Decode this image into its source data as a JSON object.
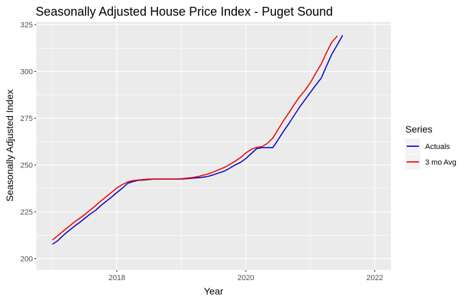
{
  "chart_data": {
    "type": "line",
    "title": "Seasonally Adjusted House Price Index - Puget Sound",
    "xlabel": "Year",
    "ylabel": "Seasonally Adjusted Index",
    "xlim": [
      2016.75,
      2022.25
    ],
    "ylim": [
      194,
      326.5
    ],
    "x_ticks": [
      2018,
      2020,
      2022
    ],
    "x_tick_labels": [
      "2018",
      "2020",
      "2022"
    ],
    "y_ticks": [
      200,
      225,
      250,
      275,
      300,
      325
    ],
    "y_tick_labels": [
      "200",
      "225",
      "250",
      "275",
      "300",
      "325"
    ],
    "grid": true,
    "legend": {
      "title": "Series",
      "position": "right"
    },
    "series": [
      {
        "name": "Actuals",
        "color": "#0000cc",
        "points": [
          [
            2017.0,
            207.7
          ],
          [
            2017.08,
            209.5
          ],
          [
            2017.17,
            212.5
          ],
          [
            2017.25,
            214.8
          ],
          [
            2017.33,
            217.0
          ],
          [
            2017.42,
            219.3
          ],
          [
            2017.5,
            221.5
          ],
          [
            2017.58,
            223.7
          ],
          [
            2017.67,
            225.8
          ],
          [
            2017.75,
            228.3
          ],
          [
            2017.83,
            230.5
          ],
          [
            2017.92,
            233.0
          ],
          [
            2018.0,
            235.3
          ],
          [
            2018.08,
            237.5
          ],
          [
            2018.17,
            240.3
          ],
          [
            2018.25,
            241.2
          ],
          [
            2018.33,
            241.8
          ],
          [
            2018.42,
            242.0
          ],
          [
            2018.5,
            242.3
          ],
          [
            2018.58,
            242.5
          ],
          [
            2018.67,
            242.5
          ],
          [
            2018.75,
            242.5
          ],
          [
            2018.83,
            242.5
          ],
          [
            2018.92,
            242.5
          ],
          [
            2019.0,
            242.5
          ],
          [
            2019.08,
            242.7
          ],
          [
            2019.17,
            243.0
          ],
          [
            2019.25,
            243.2
          ],
          [
            2019.33,
            243.5
          ],
          [
            2019.42,
            244.0
          ],
          [
            2019.5,
            244.8
          ],
          [
            2019.58,
            245.8
          ],
          [
            2019.67,
            246.8
          ],
          [
            2019.75,
            248.3
          ],
          [
            2019.83,
            250.0
          ],
          [
            2019.92,
            251.5
          ],
          [
            2020.0,
            253.5
          ],
          [
            2020.08,
            256.0
          ],
          [
            2020.17,
            258.8
          ],
          [
            2020.25,
            259.3
          ],
          [
            2020.33,
            259.3
          ],
          [
            2020.42,
            259.3
          ],
          [
            2020.5,
            263.5
          ],
          [
            2020.58,
            267.8
          ],
          [
            2020.67,
            272.3
          ],
          [
            2020.75,
            276.5
          ],
          [
            2020.83,
            280.8
          ],
          [
            2020.92,
            285.0
          ],
          [
            2021.0,
            288.8
          ],
          [
            2021.08,
            292.5
          ],
          [
            2021.17,
            296.5
          ],
          [
            2021.25,
            302.8
          ],
          [
            2021.33,
            309.0
          ],
          [
            2021.42,
            314.3
          ],
          [
            2021.5,
            319.3
          ]
        ]
      },
      {
        "name": "3 mo Avg",
        "color": "#ee0000",
        "points": [
          [
            2017.0,
            210.0
          ],
          [
            2017.08,
            212.2
          ],
          [
            2017.17,
            214.8
          ],
          [
            2017.25,
            217.0
          ],
          [
            2017.33,
            219.3
          ],
          [
            2017.42,
            221.5
          ],
          [
            2017.5,
            223.5
          ],
          [
            2017.58,
            225.8
          ],
          [
            2017.67,
            228.3
          ],
          [
            2017.75,
            230.8
          ],
          [
            2017.83,
            233.0
          ],
          [
            2017.92,
            235.5
          ],
          [
            2018.0,
            237.8
          ],
          [
            2018.08,
            239.5
          ],
          [
            2018.17,
            241.0
          ],
          [
            2018.25,
            241.7
          ],
          [
            2018.33,
            242.0
          ],
          [
            2018.42,
            242.3
          ],
          [
            2018.5,
            242.5
          ],
          [
            2018.58,
            242.5
          ],
          [
            2018.67,
            242.5
          ],
          [
            2018.75,
            242.5
          ],
          [
            2018.83,
            242.5
          ],
          [
            2018.92,
            242.5
          ],
          [
            2019.0,
            242.7
          ],
          [
            2019.08,
            243.0
          ],
          [
            2019.17,
            243.3
          ],
          [
            2019.25,
            243.8
          ],
          [
            2019.33,
            244.5
          ],
          [
            2019.42,
            245.3
          ],
          [
            2019.5,
            246.3
          ],
          [
            2019.58,
            247.5
          ],
          [
            2019.67,
            248.8
          ],
          [
            2019.75,
            250.3
          ],
          [
            2019.83,
            252.0
          ],
          [
            2019.92,
            254.0
          ],
          [
            2020.0,
            256.5
          ],
          [
            2020.08,
            258.3
          ],
          [
            2020.17,
            259.5
          ],
          [
            2020.25,
            259.8
          ],
          [
            2020.33,
            261.5
          ],
          [
            2020.42,
            264.5
          ],
          [
            2020.5,
            269.0
          ],
          [
            2020.58,
            273.5
          ],
          [
            2020.67,
            278.0
          ],
          [
            2020.75,
            282.3
          ],
          [
            2020.83,
            286.3
          ],
          [
            2020.92,
            290.0
          ],
          [
            2021.0,
            294.0
          ],
          [
            2021.08,
            298.8
          ],
          [
            2021.17,
            304.0
          ],
          [
            2021.25,
            310.0
          ],
          [
            2021.33,
            315.5
          ],
          [
            2021.42,
            319.0
          ]
        ]
      }
    ]
  }
}
